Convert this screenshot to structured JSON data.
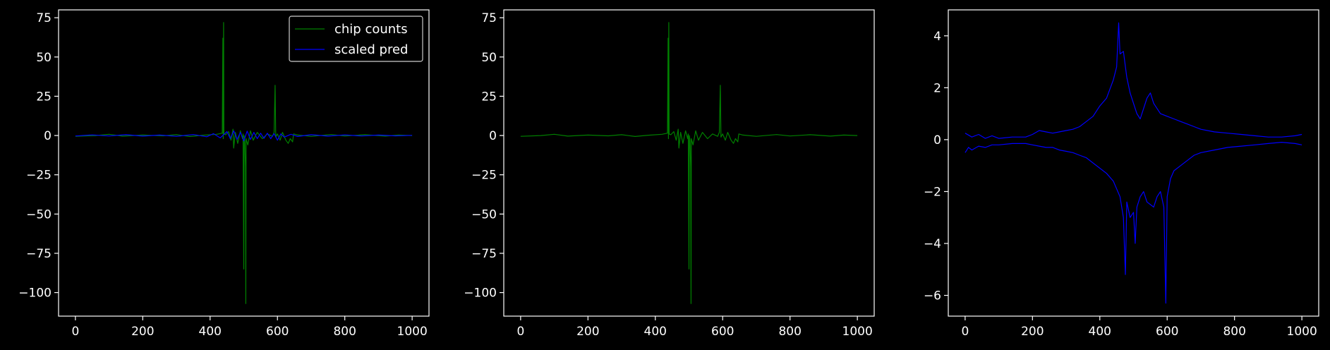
{
  "figure": {
    "background": "#000000",
    "foreground": "#ffffff"
  },
  "chart_data": [
    {
      "type": "line",
      "xlim": [
        -50,
        1050
      ],
      "ylim": [
        -115,
        80
      ],
      "x_ticks": [
        0,
        200,
        400,
        600,
        800,
        1000
      ],
      "y_ticks": [
        -100,
        -75,
        -50,
        -25,
        0,
        25,
        50,
        75
      ],
      "x_tick_labels": [
        "0",
        "200",
        "400",
        "600",
        "800",
        "1000"
      ],
      "y_tick_labels": [
        "−100",
        "−75",
        "−50",
        "−25",
        "0",
        "25",
        "50",
        "75"
      ],
      "legend_position": "top-right",
      "series": [
        {
          "name": "chip counts",
          "color": "#008000",
          "points": [
            [
              0,
              -0.5
            ],
            [
              60,
              0
            ],
            [
              100,
              0.8
            ],
            [
              140,
              -0.4
            ],
            [
              200,
              0.3
            ],
            [
              260,
              -0.2
            ],
            [
              300,
              0.5
            ],
            [
              340,
              -0.6
            ],
            [
              380,
              0.2
            ],
            [
              420,
              0.8
            ],
            [
              436,
              1.5
            ],
            [
              438,
              62
            ],
            [
              439,
              -2
            ],
            [
              440,
              72
            ],
            [
              441,
              1
            ],
            [
              446,
              0.5
            ],
            [
              455,
              2.5
            ],
            [
              462,
              -3
            ],
            [
              468,
              4
            ],
            [
              470,
              -8
            ],
            [
              475,
              2
            ],
            [
              482,
              -5
            ],
            [
              490,
              3
            ],
            [
              496,
              -2
            ],
            [
              498,
              1
            ],
            [
              500,
              -85
            ],
            [
              501,
              0
            ],
            [
              503,
              -3
            ],
            [
              505,
              -20
            ],
            [
              506,
              -107
            ],
            [
              507,
              -2
            ],
            [
              512,
              -6
            ],
            [
              520,
              3
            ],
            [
              528,
              -3
            ],
            [
              540,
              2
            ],
            [
              555,
              -2
            ],
            [
              570,
              1
            ],
            [
              585,
              -0.5
            ],
            [
              590,
              2
            ],
            [
              593,
              32
            ],
            [
              595,
              -1
            ],
            [
              600,
              1
            ],
            [
              608,
              -3
            ],
            [
              615,
              2
            ],
            [
              625,
              -3
            ],
            [
              632,
              -5
            ],
            [
              638,
              -2
            ],
            [
              645,
              -4
            ],
            [
              648,
              1
            ],
            [
              660,
              0.3
            ],
            [
              700,
              -0.5
            ],
            [
              760,
              0.6
            ],
            [
              800,
              -0.3
            ],
            [
              860,
              0.5
            ],
            [
              920,
              -0.4
            ],
            [
              960,
              0.3
            ],
            [
              1000,
              0
            ]
          ]
        },
        {
          "name": "scaled pred",
          "color": "#0000ff",
          "points": [
            [
              0,
              -0.3
            ],
            [
              50,
              0.4
            ],
            [
              100,
              -0.3
            ],
            [
              150,
              0.5
            ],
            [
              200,
              -0.4
            ],
            [
              250,
              0.3
            ],
            [
              300,
              -0.5
            ],
            [
              350,
              0.6
            ],
            [
              390,
              -0.8
            ],
            [
              410,
              1.2
            ],
            [
              430,
              -1.5
            ],
            [
              450,
              2.5
            ],
            [
              460,
              -2
            ],
            [
              470,
              3
            ],
            [
              480,
              -2.5
            ],
            [
              490,
              2
            ],
            [
              500,
              -3.5
            ],
            [
              510,
              2.8
            ],
            [
              520,
              -2.5
            ],
            [
              530,
              2
            ],
            [
              540,
              -2
            ],
            [
              550,
              1.5
            ],
            [
              560,
              -1.8
            ],
            [
              570,
              1.5
            ],
            [
              580,
              -2
            ],
            [
              590,
              1.2
            ],
            [
              600,
              -3
            ],
            [
              610,
              1
            ],
            [
              620,
              -1
            ],
            [
              640,
              0.8
            ],
            [
              660,
              -0.6
            ],
            [
              700,
              0.5
            ],
            [
              750,
              -0.4
            ],
            [
              800,
              0.4
            ],
            [
              850,
              -0.3
            ],
            [
              900,
              0.3
            ],
            [
              950,
              -0.2
            ],
            [
              1000,
              0.1
            ]
          ]
        }
      ]
    },
    {
      "type": "line",
      "xlim": [
        -50,
        1050
      ],
      "ylim": [
        -115,
        80
      ],
      "x_ticks": [
        0,
        200,
        400,
        600,
        800,
        1000
      ],
      "y_ticks": [
        -100,
        -75,
        -50,
        -25,
        0,
        25,
        50,
        75
      ],
      "x_tick_labels": [
        "0",
        "200",
        "400",
        "600",
        "800",
        "1000"
      ],
      "y_tick_labels": [
        "−100",
        "−75",
        "−50",
        "−25",
        "0",
        "25",
        "50",
        "75"
      ],
      "series": [
        {
          "name": "chip counts",
          "color": "#008000",
          "points": [
            [
              0,
              -0.5
            ],
            [
              60,
              0
            ],
            [
              100,
              0.8
            ],
            [
              140,
              -0.4
            ],
            [
              200,
              0.3
            ],
            [
              260,
              -0.2
            ],
            [
              300,
              0.5
            ],
            [
              340,
              -0.6
            ],
            [
              380,
              0.2
            ],
            [
              420,
              0.8
            ],
            [
              436,
              1.5
            ],
            [
              438,
              62
            ],
            [
              439,
              -2
            ],
            [
              440,
              72
            ],
            [
              441,
              1
            ],
            [
              446,
              0.5
            ],
            [
              455,
              2.5
            ],
            [
              462,
              -3
            ],
            [
              468,
              4
            ],
            [
              470,
              -8
            ],
            [
              475,
              2
            ],
            [
              482,
              -5
            ],
            [
              490,
              3
            ],
            [
              496,
              -2
            ],
            [
              498,
              1
            ],
            [
              500,
              -85
            ],
            [
              501,
              0
            ],
            [
              503,
              -3
            ],
            [
              505,
              -20
            ],
            [
              506,
              -107
            ],
            [
              507,
              -2
            ],
            [
              512,
              -6
            ],
            [
              520,
              3
            ],
            [
              528,
              -3
            ],
            [
              540,
              2
            ],
            [
              555,
              -2
            ],
            [
              570,
              1
            ],
            [
              585,
              -0.5
            ],
            [
              590,
              2
            ],
            [
              593,
              32
            ],
            [
              595,
              -1
            ],
            [
              600,
              1
            ],
            [
              608,
              -3
            ],
            [
              615,
              2
            ],
            [
              625,
              -3
            ],
            [
              632,
              -5
            ],
            [
              638,
              -2
            ],
            [
              645,
              -4
            ],
            [
              648,
              1
            ],
            [
              660,
              0.3
            ],
            [
              700,
              -0.5
            ],
            [
              760,
              0.6
            ],
            [
              800,
              -0.3
            ],
            [
              860,
              0.5
            ],
            [
              920,
              -0.4
            ],
            [
              960,
              0.3
            ],
            [
              1000,
              0
            ]
          ]
        }
      ]
    },
    {
      "type": "line",
      "xlim": [
        -50,
        1050
      ],
      "ylim": [
        -6.8,
        5
      ],
      "x_ticks": [
        0,
        200,
        400,
        600,
        800,
        1000
      ],
      "y_ticks": [
        -6,
        -4,
        -2,
        0,
        2,
        4
      ],
      "x_tick_labels": [
        "0",
        "200",
        "400",
        "600",
        "800",
        "1000"
      ],
      "y_tick_labels": [
        "−6",
        "−4",
        "−2",
        "0",
        "2",
        "4"
      ],
      "series": [
        {
          "color": "#0000ff",
          "points": [
            [
              0,
              0.25
            ],
            [
              20,
              0.1
            ],
            [
              40,
              0.2
            ],
            [
              60,
              0.05
            ],
            [
              80,
              0.15
            ],
            [
              100,
              0.05
            ],
            [
              140,
              0.1
            ],
            [
              180,
              0.1
            ],
            [
              200,
              0.2
            ],
            [
              220,
              0.35
            ],
            [
              240,
              0.3
            ],
            [
              260,
              0.25
            ],
            [
              280,
              0.3
            ],
            [
              300,
              0.35
            ],
            [
              320,
              0.4
            ],
            [
              340,
              0.5
            ],
            [
              360,
              0.7
            ],
            [
              380,
              0.9
            ],
            [
              400,
              1.3
            ],
            [
              420,
              1.6
            ],
            [
              440,
              2.3
            ],
            [
              450,
              2.8
            ],
            [
              456,
              4.5
            ],
            [
              460,
              3.3
            ],
            [
              470,
              3.4
            ],
            [
              480,
              2.4
            ],
            [
              490,
              1.8
            ],
            [
              500,
              1.4
            ],
            [
              510,
              1.0
            ],
            [
              520,
              0.8
            ],
            [
              530,
              1.2
            ],
            [
              540,
              1.6
            ],
            [
              550,
              1.8
            ],
            [
              560,
              1.4
            ],
            [
              570,
              1.2
            ],
            [
              580,
              1.0
            ],
            [
              600,
              0.9
            ],
            [
              620,
              0.8
            ],
            [
              640,
              0.7
            ],
            [
              660,
              0.6
            ],
            [
              680,
              0.5
            ],
            [
              700,
              0.4
            ],
            [
              740,
              0.3
            ],
            [
              780,
              0.25
            ],
            [
              820,
              0.2
            ],
            [
              860,
              0.15
            ],
            [
              900,
              0.1
            ],
            [
              940,
              0.1
            ],
            [
              980,
              0.15
            ],
            [
              1000,
              0.2
            ]
          ]
        },
        {
          "color": "#0000ff",
          "points": [
            [
              0,
              -0.5
            ],
            [
              10,
              -0.3
            ],
            [
              20,
              -0.4
            ],
            [
              40,
              -0.25
            ],
            [
              60,
              -0.3
            ],
            [
              80,
              -0.2
            ],
            [
              100,
              -0.2
            ],
            [
              140,
              -0.15
            ],
            [
              180,
              -0.15
            ],
            [
              200,
              -0.2
            ],
            [
              220,
              -0.25
            ],
            [
              240,
              -0.3
            ],
            [
              260,
              -0.3
            ],
            [
              280,
              -0.4
            ],
            [
              300,
              -0.45
            ],
            [
              320,
              -0.5
            ],
            [
              340,
              -0.6
            ],
            [
              360,
              -0.7
            ],
            [
              380,
              -0.9
            ],
            [
              400,
              -1.1
            ],
            [
              420,
              -1.3
            ],
            [
              440,
              -1.6
            ],
            [
              460,
              -2.2
            ],
            [
              470,
              -3
            ],
            [
              476,
              -5.2
            ],
            [
              480,
              -2.4
            ],
            [
              490,
              -3
            ],
            [
              500,
              -2.8
            ],
            [
              505,
              -4
            ],
            [
              510,
              -2.6
            ],
            [
              520,
              -2.2
            ],
            [
              530,
              -2.0
            ],
            [
              540,
              -2.4
            ],
            [
              560,
              -2.6
            ],
            [
              570,
              -2.2
            ],
            [
              580,
              -2.0
            ],
            [
              590,
              -2.6
            ],
            [
              596,
              -6.3
            ],
            [
              600,
              -2.2
            ],
            [
              610,
              -1.5
            ],
            [
              620,
              -1.2
            ],
            [
              640,
              -1.0
            ],
            [
              660,
              -0.8
            ],
            [
              680,
              -0.6
            ],
            [
              700,
              -0.5
            ],
            [
              740,
              -0.4
            ],
            [
              780,
              -0.3
            ],
            [
              820,
              -0.25
            ],
            [
              860,
              -0.2
            ],
            [
              900,
              -0.15
            ],
            [
              940,
              -0.1
            ],
            [
              980,
              -0.15
            ],
            [
              1000,
              -0.2
            ]
          ]
        }
      ]
    }
  ]
}
